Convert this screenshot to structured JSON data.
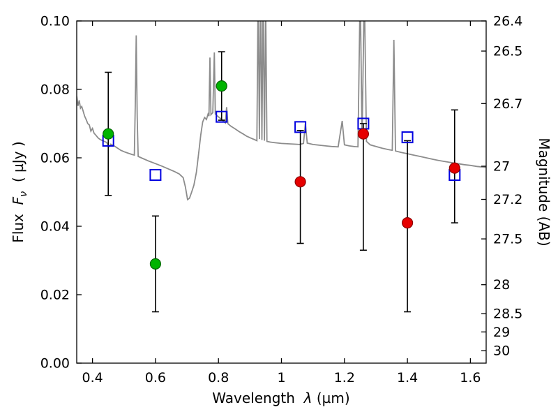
{
  "figure": {
    "background": "#ffffff"
  },
  "chart_data": {
    "type": "line+scatter",
    "title": "",
    "xlabel": "Wavelength λ (µm)",
    "ylabel_left": "Flux Fν ( µJy )",
    "ylabel_right": "Magnitude (AB)",
    "labels": {
      "xlabel_prefix": "Wavelength",
      "xlabel_symbol": "λ",
      "xlabel_units": "(µm)",
      "ylabel_left_prefix": "Flux",
      "ylabel_left_symbol": "F",
      "ylabel_left_subscript": "ν",
      "ylabel_left_units": "( µJy )",
      "ylabel_right": "Magnitude (AB)"
    },
    "xlim": [
      0.35,
      1.65
    ],
    "ylim": [
      0.0,
      0.1
    ],
    "grid": false,
    "legend": false,
    "x_ticks": [
      0.4,
      0.6,
      0.8,
      1.0,
      1.2,
      1.4,
      1.6
    ],
    "x_tick_labels": [
      "0.4",
      "0.6",
      "0.8",
      "1",
      "1.2",
      "1.4",
      "1.6"
    ],
    "y_ticks_left": [
      0.0,
      0.02,
      0.04,
      0.06,
      0.08,
      0.1
    ],
    "y_tick_labels_left": [
      "0.00",
      "0.02",
      "0.04",
      "0.06",
      "0.08",
      "0.10"
    ],
    "y_ticks_right_mag": [
      26.4,
      26.5,
      26.7,
      27,
      27.2,
      27.5,
      28,
      28.5,
      29,
      30
    ],
    "y_tick_labels_right": [
      "26.4",
      "26.5",
      "26.7",
      "27",
      "27.2",
      "27.5",
      "28",
      "28.5",
      "29",
      "30"
    ],
    "mag_reference": {
      "mag": 26.4,
      "flux_ujy": 0.1
    },
    "series": [
      {
        "name": "gray-spectrum",
        "type": "line",
        "color": "#8c8c8c",
        "points": [
          [
            0.35,
            0.078
          ],
          [
            0.354,
            0.0752
          ],
          [
            0.358,
            0.0768
          ],
          [
            0.362,
            0.0745
          ],
          [
            0.366,
            0.075
          ],
          [
            0.37,
            0.0738
          ],
          [
            0.375,
            0.0722
          ],
          [
            0.38,
            0.0712
          ],
          [
            0.385,
            0.07
          ],
          [
            0.39,
            0.0696
          ],
          [
            0.395,
            0.0678
          ],
          [
            0.4,
            0.0686
          ],
          [
            0.405,
            0.0672
          ],
          [
            0.41,
            0.0667
          ],
          [
            0.418,
            0.0658
          ],
          [
            0.425,
            0.0653
          ],
          [
            0.435,
            0.0649
          ],
          [
            0.445,
            0.0645
          ],
          [
            0.452,
            0.0632
          ],
          [
            0.458,
            0.064
          ],
          [
            0.47,
            0.0634
          ],
          [
            0.48,
            0.0628
          ],
          [
            0.49,
            0.0622
          ],
          [
            0.5,
            0.0618
          ],
          [
            0.512,
            0.0614
          ],
          [
            0.525,
            0.061
          ],
          [
            0.533,
            0.0608
          ],
          [
            0.536,
            0.076
          ],
          [
            0.539,
            0.0958
          ],
          [
            0.542,
            0.072
          ],
          [
            0.545,
            0.0604
          ],
          [
            0.56,
            0.0598
          ],
          [
            0.58,
            0.059
          ],
          [
            0.6,
            0.0583
          ],
          [
            0.62,
            0.0576
          ],
          [
            0.64,
            0.0568
          ],
          [
            0.66,
            0.056
          ],
          [
            0.675,
            0.0553
          ],
          [
            0.688,
            0.0542
          ],
          [
            0.695,
            0.0515
          ],
          [
            0.702,
            0.0478
          ],
          [
            0.708,
            0.0482
          ],
          [
            0.715,
            0.05
          ],
          [
            0.722,
            0.052
          ],
          [
            0.73,
            0.0558
          ],
          [
            0.738,
            0.062
          ],
          [
            0.744,
            0.0668
          ],
          [
            0.75,
            0.0705
          ],
          [
            0.756,
            0.0718
          ],
          [
            0.762,
            0.0712
          ],
          [
            0.767,
            0.0728
          ],
          [
            0.77,
            0.0722
          ],
          [
            0.773,
            0.0893
          ],
          [
            0.776,
            0.0726
          ],
          [
            0.782,
            0.0732
          ],
          [
            0.787,
            0.0908
          ],
          [
            0.79,
            0.0728
          ],
          [
            0.797,
            0.0722
          ],
          [
            0.805,
            0.0716
          ],
          [
            0.815,
            0.0708
          ],
          [
            0.822,
            0.0702
          ],
          [
            0.826,
            0.0748
          ],
          [
            0.83,
            0.07
          ],
          [
            0.84,
            0.0692
          ],
          [
            0.852,
            0.0685
          ],
          [
            0.865,
            0.0677
          ],
          [
            0.878,
            0.067
          ],
          [
            0.89,
            0.0663
          ],
          [
            0.902,
            0.0658
          ],
          [
            0.915,
            0.0653
          ],
          [
            0.922,
            0.065
          ],
          [
            0.926,
            0.11
          ],
          [
            0.93,
            0.0655
          ],
          [
            0.934,
            0.11
          ],
          [
            0.938,
            0.0652
          ],
          [
            0.942,
            0.11
          ],
          [
            0.946,
            0.065
          ],
          [
            0.95,
            0.104
          ],
          [
            0.954,
            0.0648
          ],
          [
            0.965,
            0.0646
          ],
          [
            0.98,
            0.0644
          ],
          [
            1.0,
            0.0642
          ],
          [
            1.02,
            0.0641
          ],
          [
            1.04,
            0.064
          ],
          [
            1.058,
            0.0639
          ],
          [
            1.07,
            0.0642
          ],
          [
            1.076,
            0.07
          ],
          [
            1.082,
            0.0643
          ],
          [
            1.1,
            0.0639
          ],
          [
            1.12,
            0.0637
          ],
          [
            1.14,
            0.0635
          ],
          [
            1.16,
            0.0633
          ],
          [
            1.18,
            0.0632
          ],
          [
            1.193,
            0.0708
          ],
          [
            1.2,
            0.0638
          ],
          [
            1.215,
            0.0635
          ],
          [
            1.23,
            0.0633
          ],
          [
            1.243,
            0.0632
          ],
          [
            1.25,
            0.11
          ],
          [
            1.256,
            0.0655
          ],
          [
            1.263,
            0.11
          ],
          [
            1.27,
            0.0648
          ],
          [
            1.282,
            0.0638
          ],
          [
            1.3,
            0.0633
          ],
          [
            1.32,
            0.0628
          ],
          [
            1.34,
            0.0624
          ],
          [
            1.352,
            0.0622
          ],
          [
            1.357,
            0.0945
          ],
          [
            1.362,
            0.062
          ],
          [
            1.38,
            0.0616
          ],
          [
            1.4,
            0.0612
          ],
          [
            1.42,
            0.0608
          ],
          [
            1.44,
            0.0604
          ],
          [
            1.46,
            0.06
          ],
          [
            1.48,
            0.0596
          ],
          [
            1.5,
            0.0592
          ],
          [
            1.52,
            0.0589
          ],
          [
            1.54,
            0.0586
          ],
          [
            1.56,
            0.0583
          ],
          [
            1.58,
            0.058
          ],
          [
            1.6,
            0.0578
          ],
          [
            1.62,
            0.0575
          ],
          [
            1.65,
            0.0572
          ]
        ]
      },
      {
        "name": "green-circles",
        "type": "scatter",
        "marker": "circle",
        "color": "#00b400",
        "edge": "#006400",
        "x": [
          0.45,
          0.6,
          0.81
        ],
        "y": [
          0.067,
          0.029,
          0.081
        ],
        "err_low_y": [
          0.049,
          0.015,
          0.071
        ],
        "err_high_y": [
          0.085,
          0.043,
          0.091
        ]
      },
      {
        "name": "red-circles",
        "type": "scatter",
        "marker": "circle",
        "color": "#e60000",
        "edge": "#8b0000",
        "x": [
          1.06,
          1.26,
          1.4,
          1.55
        ],
        "y": [
          0.053,
          0.067,
          0.041,
          0.057
        ],
        "err_low_y": [
          0.035,
          0.033,
          0.015,
          0.041
        ],
        "err_high_y": [
          0.068,
          0.07,
          0.065,
          0.074
        ]
      },
      {
        "name": "blue-squares",
        "type": "scatter",
        "marker": "square-open",
        "color": "#0000e0",
        "x": [
          0.45,
          0.6,
          0.81,
          1.06,
          1.26,
          1.4,
          1.55
        ],
        "y": [
          0.065,
          0.055,
          0.072,
          0.069,
          0.07,
          0.066,
          0.055
        ]
      }
    ]
  }
}
